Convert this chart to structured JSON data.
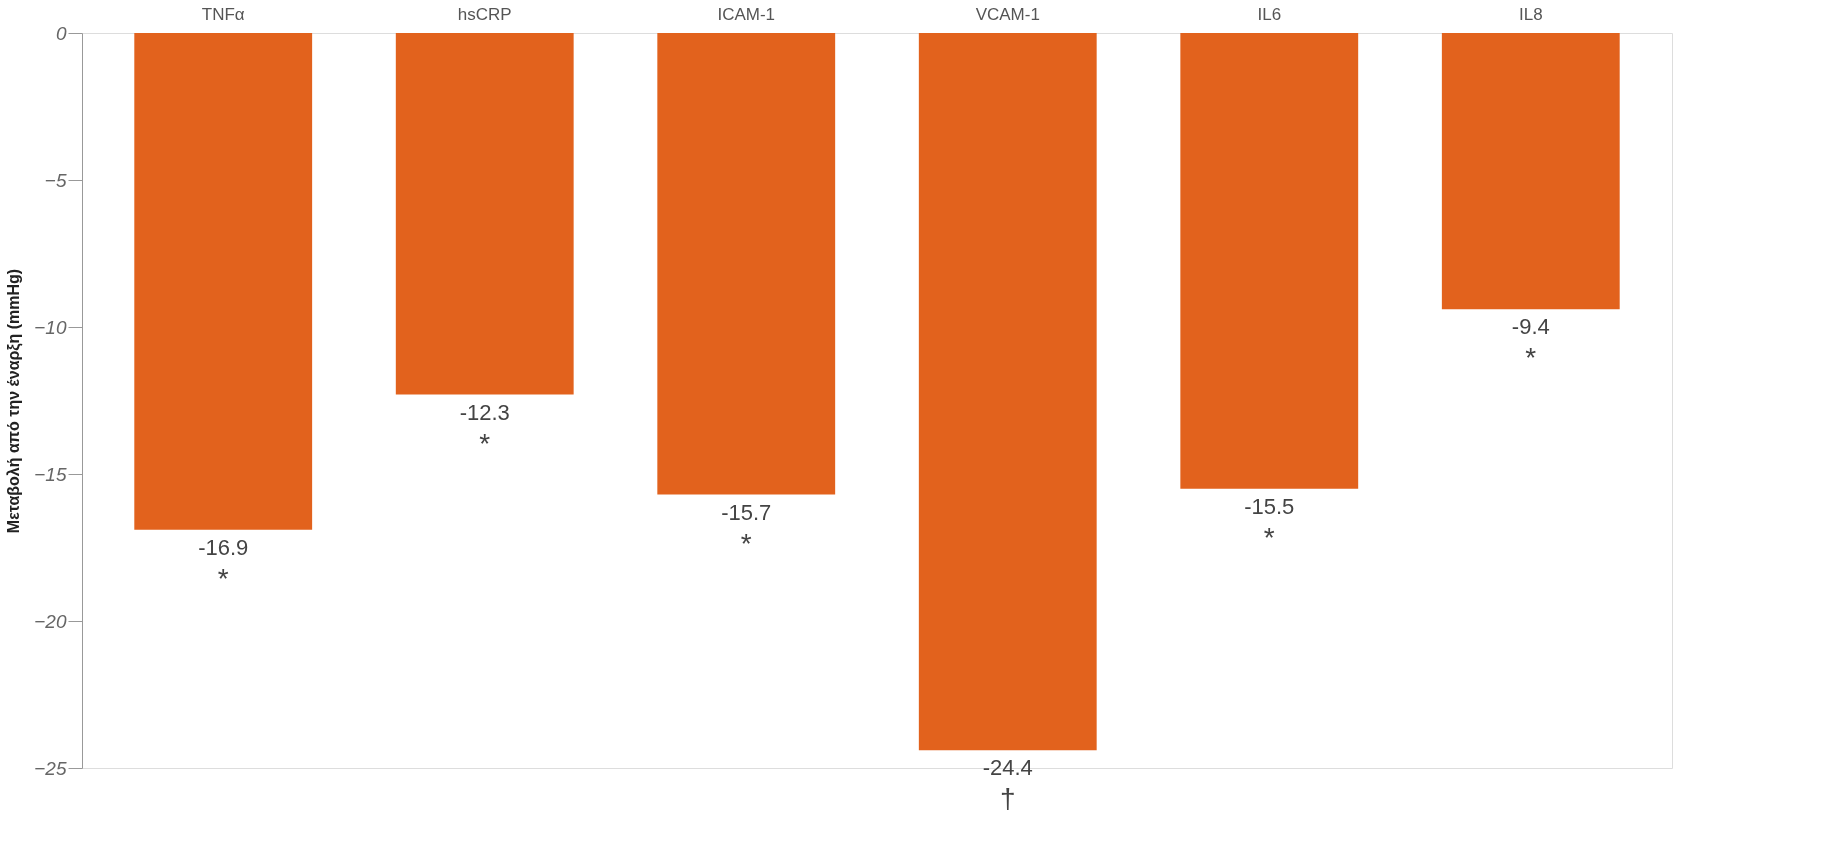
{
  "chart_data": {
    "type": "bar",
    "ylabel": "Μεταβολή από την έναρξη (mmHg)",
    "categories": [
      "TNFα",
      "hsCRP",
      "ICAM-1",
      "VCAM-1",
      "IL6",
      "IL8"
    ],
    "values": [
      -16.9,
      -12.3,
      -15.7,
      -24.4,
      -15.5,
      -9.4
    ],
    "color": "#e2621d",
    "ylim": [
      -25,
      0
    ],
    "yticks": [
      0,
      -5,
      -10,
      -15,
      -20,
      -25
    ],
    "grid": false,
    "data_labels": true,
    "annotations": [
      {
        "text": "*",
        "x": "TNFα",
        "y": -16.9
      },
      {
        "text": "*",
        "x": "hsCRP",
        "y": -12.3
      },
      {
        "text": "*",
        "x": "ICAM-1",
        "y": -15.7
      },
      {
        "text": "†",
        "x": "VCAM-1",
        "y": -24.4
      },
      {
        "text": "*",
        "x": "IL6",
        "y": -15.5
      },
      {
        "text": "*",
        "x": "IL8",
        "y": -9.4
      }
    ]
  }
}
